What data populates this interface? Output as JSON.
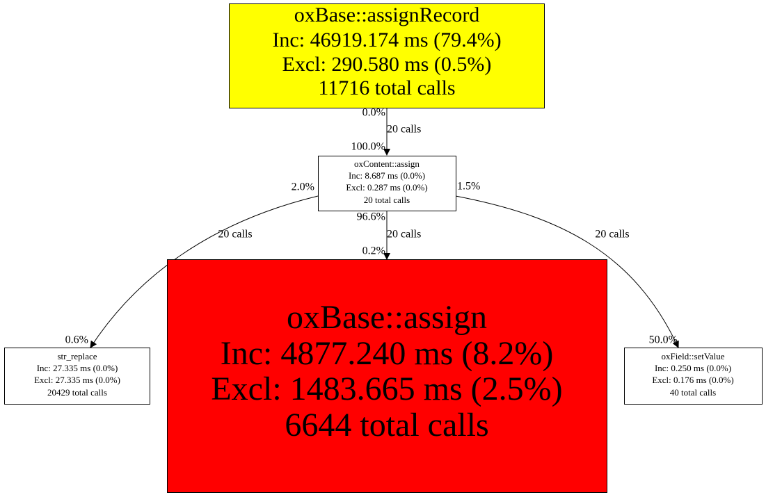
{
  "nodes": [
    {
      "lines": [
        "oxBase::assignRecord",
        "Inc: 46919.174 ms (79.4%)",
        "Excl: 290.580 ms (0.5%)",
        "11716 total calls"
      ]
    },
    {
      "lines": [
        "oxContent::assign",
        "Inc: 8.687 ms (0.0%)",
        "Excl: 0.287 ms (0.0%)",
        "20 total calls"
      ]
    },
    {
      "lines": [
        "str_replace",
        "Inc: 27.335 ms (0.0%)",
        "Excl: 27.335 ms (0.0%)",
        "20429 total calls"
      ]
    },
    {
      "lines": [
        "oxBase::assign",
        "Inc: 4877.240 ms (8.2%)",
        "Excl: 1483.665 ms (2.5%)",
        "6644 total calls"
      ]
    },
    {
      "lines": [
        "oxField::setValue",
        "Inc: 0.250 ms (0.0%)",
        "Excl: 0.176 ms (0.0%)",
        "40 total calls"
      ]
    }
  ],
  "edges": [
    {
      "label": "20 calls",
      "tail": "0.0%",
      "head": "100.0%"
    },
    {
      "label": "20 calls",
      "tail": "2.0%",
      "head": "0.6%"
    },
    {
      "label": "20 calls",
      "tail": "96.6%",
      "head": "0.2%"
    },
    {
      "label": "20 calls",
      "tail": "1.5%",
      "head": "50.0%"
    }
  ]
}
